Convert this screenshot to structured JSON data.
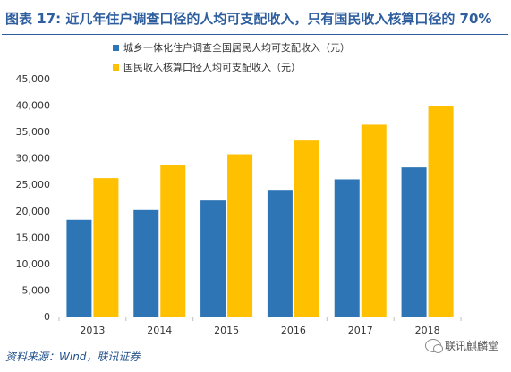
{
  "header": {
    "title_prefix": "图表 17:",
    "title_main": " 近几年住户调查口径的人均可支配收入，只有国民收入核算口径的 70%",
    "title_prefix_color": "#2e5e9e",
    "title_main_color": "#2e5e9e"
  },
  "footer": {
    "source": "资料来源：Wind，联讯证券",
    "watermark": "联讯麒麟堂",
    "watermark_icon": "wechat-icon"
  },
  "chart_data": {
    "type": "bar",
    "categories": [
      "2013",
      "2014",
      "2015",
      "2016",
      "2017",
      "2018"
    ],
    "series": [
      {
        "name": "城乡一体化住户调查全国居民人均可支配收入（元）",
        "color": "#2e75b6",
        "values": [
          18311,
          20167,
          21966,
          23821,
          25974,
          28228
        ]
      },
      {
        "name": "国民收入核算口径人均可支配收入（元）",
        "color": "#ffc000",
        "values": [
          26200,
          28600,
          30700,
          33300,
          36300,
          39900
        ]
      }
    ],
    "ylim": [
      0,
      45000
    ],
    "yticks": [
      "0",
      "5,000",
      "10,000",
      "15,000",
      "20,000",
      "25,000",
      "30,000",
      "35,000",
      "40,000",
      "45,000"
    ],
    "grid": false,
    "legend_position": "top-left"
  }
}
